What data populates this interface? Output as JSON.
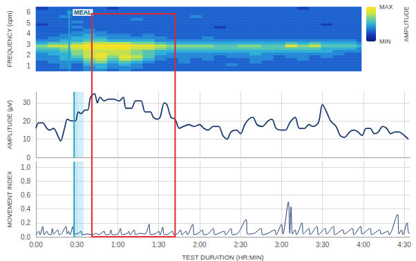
{
  "chart_data": [
    {
      "type": "heatmap",
      "y_label": "FREQUENCY (cpm)",
      "xlim": [
        0,
        274
      ],
      "ylim": [
        0.5,
        6.5
      ],
      "yticks": [
        1,
        2,
        3,
        4,
        5,
        6
      ],
      "tick_labels": "y",
      "grid": false,
      "x_bins": [
        0,
        10,
        20,
        30,
        40,
        50,
        60,
        70,
        80,
        90,
        100,
        110,
        120,
        130,
        140,
        150,
        160,
        170,
        180,
        190,
        200,
        210,
        220,
        230,
        240,
        250,
        260,
        270,
        274
      ],
      "y_bins": [
        0.5,
        0.75,
        1,
        1.25,
        1.5,
        1.75,
        2,
        2.25,
        2.5,
        2.75,
        3,
        3.25,
        3.5,
        3.75,
        4,
        4.25,
        4.5,
        4.75,
        5,
        5.25,
        5.5,
        5.75,
        6,
        6.25,
        6.5
      ],
      "cells": [
        [
          3,
          3,
          3,
          3,
          4,
          4,
          3,
          4,
          3,
          3,
          3,
          3,
          3,
          3,
          3,
          3,
          3,
          3,
          3,
          3,
          3,
          3,
          3,
          3,
          3,
          3,
          3,
          3
        ],
        [
          3,
          3,
          4,
          3,
          4,
          5,
          4,
          4,
          4,
          3,
          3,
          3,
          3,
          3,
          3,
          3,
          3,
          3,
          3,
          3,
          3,
          3,
          3,
          3,
          3,
          3,
          3,
          3
        ],
        [
          3,
          3,
          4,
          3,
          5,
          5,
          4,
          5,
          4,
          3,
          3,
          3,
          3,
          3,
          3,
          3,
          4,
          3,
          3,
          3,
          3,
          3,
          3,
          3,
          3,
          3,
          3,
          3
        ],
        [
          3,
          4,
          4,
          4,
          6,
          7,
          5,
          6,
          5,
          4,
          3,
          3,
          4,
          3,
          3,
          3,
          3,
          3,
          4,
          3,
          3,
          3,
          3,
          3,
          3,
          3,
          3,
          3
        ],
        [
          4,
          4,
          5,
          5,
          7,
          8,
          6,
          8,
          7,
          5,
          4,
          3,
          4,
          3,
          4,
          3,
          3,
          3,
          4,
          4,
          3,
          3,
          4,
          3,
          3,
          3,
          3,
          3
        ],
        [
          4,
          4,
          5,
          6,
          8,
          9,
          7,
          9,
          8,
          6,
          4,
          4,
          4,
          4,
          4,
          3,
          4,
          4,
          4,
          4,
          3,
          4,
          4,
          3,
          4,
          3,
          3,
          3
        ],
        [
          4,
          5,
          5,
          7,
          8,
          9,
          8,
          8,
          7,
          6,
          5,
          4,
          4,
          4,
          4,
          4,
          4,
          4,
          5,
          4,
          4,
          4,
          4,
          4,
          4,
          4,
          3,
          3
        ],
        [
          5,
          5,
          6,
          7,
          8,
          8,
          8,
          8,
          7,
          6,
          5,
          5,
          5,
          5,
          5,
          5,
          5,
          5,
          5,
          5,
          5,
          5,
          5,
          5,
          5,
          4,
          4,
          4
        ],
        [
          6,
          6,
          7,
          8,
          9,
          9,
          9,
          9,
          8,
          8,
          7,
          6,
          6,
          6,
          6,
          6,
          6,
          6,
          6,
          6,
          6,
          6,
          6,
          6,
          5,
          5,
          5,
          4
        ],
        [
          7,
          8,
          8,
          9,
          10,
          10,
          10,
          10,
          9,
          9,
          8,
          7,
          7,
          7,
          7,
          6,
          6,
          7,
          7,
          6,
          6,
          9,
          7,
          8,
          6,
          6,
          6,
          5
        ],
        [
          5,
          6,
          6,
          7,
          8,
          8,
          8,
          8,
          7,
          7,
          6,
          5,
          5,
          5,
          5,
          5,
          5,
          5,
          5,
          5,
          5,
          6,
          5,
          6,
          5,
          5,
          5,
          4
        ],
        [
          4,
          4,
          5,
          5,
          6,
          6,
          5,
          5,
          5,
          5,
          4,
          4,
          4,
          4,
          4,
          4,
          4,
          4,
          4,
          4,
          4,
          4,
          4,
          4,
          4,
          4,
          4,
          3
        ],
        [
          3,
          4,
          4,
          5,
          5,
          5,
          4,
          4,
          4,
          4,
          4,
          3,
          3,
          3,
          4,
          3,
          3,
          3,
          3,
          3,
          3,
          3,
          3,
          3,
          3,
          3,
          3,
          3
        ],
        [
          3,
          3,
          4,
          4,
          5,
          4,
          4,
          4,
          3,
          4,
          3,
          3,
          3,
          3,
          3,
          3,
          3,
          3,
          3,
          3,
          3,
          3,
          3,
          3,
          3,
          3,
          3,
          3
        ],
        [
          3,
          3,
          3,
          4,
          4,
          4,
          3,
          3,
          3,
          3,
          3,
          3,
          3,
          3,
          3,
          3,
          3,
          3,
          3,
          3,
          3,
          3,
          3,
          3,
          3,
          3,
          3,
          3
        ],
        [
          3,
          3,
          3,
          3,
          4,
          3,
          3,
          3,
          3,
          3,
          3,
          3,
          3,
          3,
          3,
          3,
          3,
          3,
          3,
          3,
          3,
          3,
          3,
          3,
          3,
          3,
          3,
          3
        ],
        [
          3,
          3,
          3,
          4,
          3,
          3,
          3,
          3,
          3,
          3,
          3,
          3,
          3,
          3,
          3,
          2,
          3,
          3,
          3,
          3,
          3,
          3,
          3,
          3,
          3,
          3,
          3,
          3
        ],
        [
          2,
          3,
          3,
          3,
          3,
          3,
          3,
          3,
          3,
          3,
          3,
          3,
          3,
          3,
          3,
          3,
          3,
          3,
          3,
          3,
          3,
          3,
          3,
          3,
          2,
          3,
          3,
          3
        ],
        [
          3,
          3,
          3,
          4,
          3,
          3,
          3,
          3,
          3,
          3,
          3,
          3,
          3,
          3,
          3,
          3,
          3,
          3,
          3,
          3,
          3,
          3,
          3,
          3,
          3,
          3,
          3,
          3
        ],
        [
          3,
          3,
          3,
          3,
          3,
          3,
          3,
          3,
          4,
          3,
          3,
          3,
          3,
          3,
          3,
          3,
          3,
          3,
          3,
          3,
          3,
          3,
          3,
          3,
          3,
          3,
          3,
          3
        ],
        [
          3,
          3,
          4,
          3,
          3,
          3,
          3,
          3,
          3,
          3,
          3,
          3,
          3,
          4,
          3,
          3,
          3,
          3,
          3,
          3,
          3,
          3,
          3,
          3,
          3,
          3,
          3,
          3
        ],
        [
          3,
          3,
          3,
          3,
          3,
          3,
          3,
          3,
          3,
          3,
          3,
          3,
          3,
          3,
          3,
          3,
          3,
          3,
          3,
          3,
          3,
          3,
          3,
          3,
          3,
          3,
          3,
          3
        ],
        [
          3,
          3,
          3,
          3,
          3,
          3,
          3,
          3,
          3,
          3,
          3,
          3,
          3,
          3,
          3,
          3,
          3,
          3,
          3,
          3,
          3,
          3,
          3,
          3,
          3,
          3,
          3,
          3
        ],
        [
          2,
          3,
          3,
          3,
          3,
          3,
          2,
          3,
          3,
          3,
          3,
          3,
          3,
          3,
          3,
          3,
          3,
          3,
          3,
          3,
          3,
          3,
          2,
          3,
          3,
          3,
          3,
          3
        ]
      ],
      "colorbar": {
        "range": [
          0,
          10
        ],
        "ticks": [
          {
            "value": 10,
            "label": "MAX"
          },
          {
            "value": 0,
            "label": "MIN"
          }
        ],
        "title": "AMPLITUDE"
      }
    },
    {
      "type": "line",
      "y_label": "AMPLITUDE (μV)",
      "xlim": [
        0,
        274
      ],
      "xticks": [
        0,
        30,
        60,
        90,
        120,
        150,
        180,
        210,
        240,
        270
      ],
      "ylim": [
        0,
        36
      ],
      "yticks": [
        0,
        10,
        20,
        30
      ],
      "tick_labels": "y",
      "grid": true,
      "color": "#1b3a6b",
      "x": [
        0,
        2,
        5,
        8,
        10,
        13,
        16,
        18,
        21,
        23,
        26,
        29,
        31,
        33,
        36,
        38,
        40,
        43,
        45,
        47,
        50,
        53,
        57,
        61,
        64,
        66,
        70,
        73,
        77,
        80,
        84,
        86,
        89,
        91,
        94,
        96,
        99,
        102,
        105,
        108,
        112,
        116,
        120,
        123,
        126,
        130,
        134,
        137,
        140,
        143,
        147,
        150,
        153,
        156,
        159,
        162,
        166,
        170,
        173,
        176,
        180,
        183,
        186,
        190,
        193,
        197,
        200,
        203,
        207,
        210,
        213,
        216,
        220,
        223,
        226,
        230,
        233,
        236,
        239,
        242,
        245,
        248,
        251,
        254,
        257,
        260,
        263,
        266,
        270,
        273
      ],
      "values": [
        16,
        19,
        19,
        16,
        15,
        16,
        12,
        9,
        16,
        21,
        20,
        20,
        25,
        24,
        26,
        26,
        33,
        35,
        30,
        33,
        31,
        32,
        32,
        31,
        33,
        27,
        27,
        31,
        31,
        25,
        25,
        22,
        21,
        22,
        30,
        29,
        22,
        21,
        16,
        17,
        18,
        17,
        18,
        16,
        15,
        17,
        17,
        12,
        10,
        14,
        15,
        13,
        18,
        21,
        22,
        18,
        17,
        20,
        21,
        16,
        15,
        15,
        19,
        22,
        16,
        16,
        18,
        17,
        19,
        29,
        25,
        20,
        17,
        12,
        11,
        14,
        15,
        14,
        12,
        16,
        16,
        13,
        14,
        17,
        16,
        13,
        14,
        14,
        12,
        10
      ]
    },
    {
      "type": "line",
      "y_label": "MOVEMENT INDEX",
      "x_label": "TEST DURATION (HR:MIN)",
      "xlim": [
        0,
        274
      ],
      "xticks": [
        {
          "value": 0,
          "label": "0:00"
        },
        {
          "value": 30,
          "label": "0:30"
        },
        {
          "value": 60,
          "label": "1:00"
        },
        {
          "value": 90,
          "label": "1:30"
        },
        {
          "value": 120,
          "label": "2:00"
        },
        {
          "value": 150,
          "label": "2:30"
        },
        {
          "value": 180,
          "label": "3:00"
        },
        {
          "value": 210,
          "label": "3:30"
        },
        {
          "value": 240,
          "label": "4:00"
        },
        {
          "value": 270,
          "label": "4:30"
        }
      ],
      "ylim": [
        0,
        1.08
      ],
      "yticks": [
        {
          "value": 0,
          "label": "0.0"
        },
        0.2,
        0.4,
        0.6,
        0.8,
        {
          "value": 1,
          "label": "1.0"
        }
      ],
      "grid": true,
      "color": "#1b3a6b",
      "x": [
        0,
        2,
        3,
        5,
        6,
        8,
        9,
        11,
        12,
        13,
        16,
        17,
        19,
        22,
        23,
        24,
        25,
        27,
        28,
        31,
        33,
        34,
        38,
        42,
        44,
        46,
        50,
        51,
        54,
        55,
        56,
        60,
        62,
        63,
        67,
        68,
        69,
        72,
        73,
        76,
        80,
        83,
        84,
        88,
        90,
        91,
        93,
        94,
        97,
        100,
        101,
        104,
        106,
        107,
        110,
        111,
        115,
        116,
        119,
        122,
        123,
        126,
        130,
        131,
        134,
        138,
        139,
        143,
        144,
        148,
        154,
        155,
        160,
        165,
        166,
        170,
        175,
        176,
        180,
        181,
        185,
        186,
        187,
        188,
        190,
        191,
        195,
        196,
        200,
        201,
        206,
        207,
        212,
        213,
        218,
        219,
        225,
        226,
        232,
        233,
        238,
        239,
        245,
        246,
        252,
        253,
        258,
        259,
        265,
        266,
        268,
        269,
        272,
        273,
        274
      ],
      "values": [
        0.03,
        0.08,
        0.03,
        0.15,
        0.03,
        0.08,
        0.04,
        0.03,
        0.12,
        0.04,
        0.1,
        0.03,
        0.05,
        0.15,
        0.04,
        0.08,
        0.03,
        0.15,
        0.04,
        0.05,
        0.08,
        0.03,
        0.04,
        0.03,
        0.05,
        0.03,
        0.08,
        0.03,
        0.04,
        0.1,
        0.03,
        0.04,
        0.12,
        0.03,
        0.05,
        0.08,
        0.03,
        0.1,
        0.03,
        0.05,
        0.04,
        0.18,
        0.03,
        0.05,
        0.08,
        0.03,
        0.14,
        0.03,
        0.04,
        0.08,
        0.03,
        0.05,
        0.1,
        0.03,
        0.08,
        0.03,
        0.18,
        0.03,
        0.05,
        0.1,
        0.03,
        0.04,
        0.12,
        0.03,
        0.05,
        0.08,
        0.03,
        0.12,
        0.03,
        0.05,
        0.25,
        0.04,
        0.05,
        0.12,
        0.03,
        0.05,
        0.1,
        0.03,
        0.18,
        0.04,
        0.5,
        0.05,
        0.43,
        0.04,
        0.1,
        0.03,
        0.2,
        0.04,
        0.12,
        0.03,
        0.15,
        0.03,
        0.12,
        0.04,
        0.15,
        0.03,
        0.1,
        0.04,
        0.12,
        0.03,
        0.15,
        0.04,
        0.12,
        0.03,
        0.1,
        0.04,
        0.08,
        0.03,
        0.32,
        0.04,
        0.1,
        0.03,
        0.2,
        0.06,
        0.05
      ]
    }
  ],
  "annotations": {
    "meal": {
      "label": "MEAL",
      "x": 28,
      "band": [
        28,
        35
      ],
      "color": "#1ba6c9"
    },
    "highlight": {
      "x": [
        41,
        102
      ],
      "color": "#e3262d"
    }
  }
}
